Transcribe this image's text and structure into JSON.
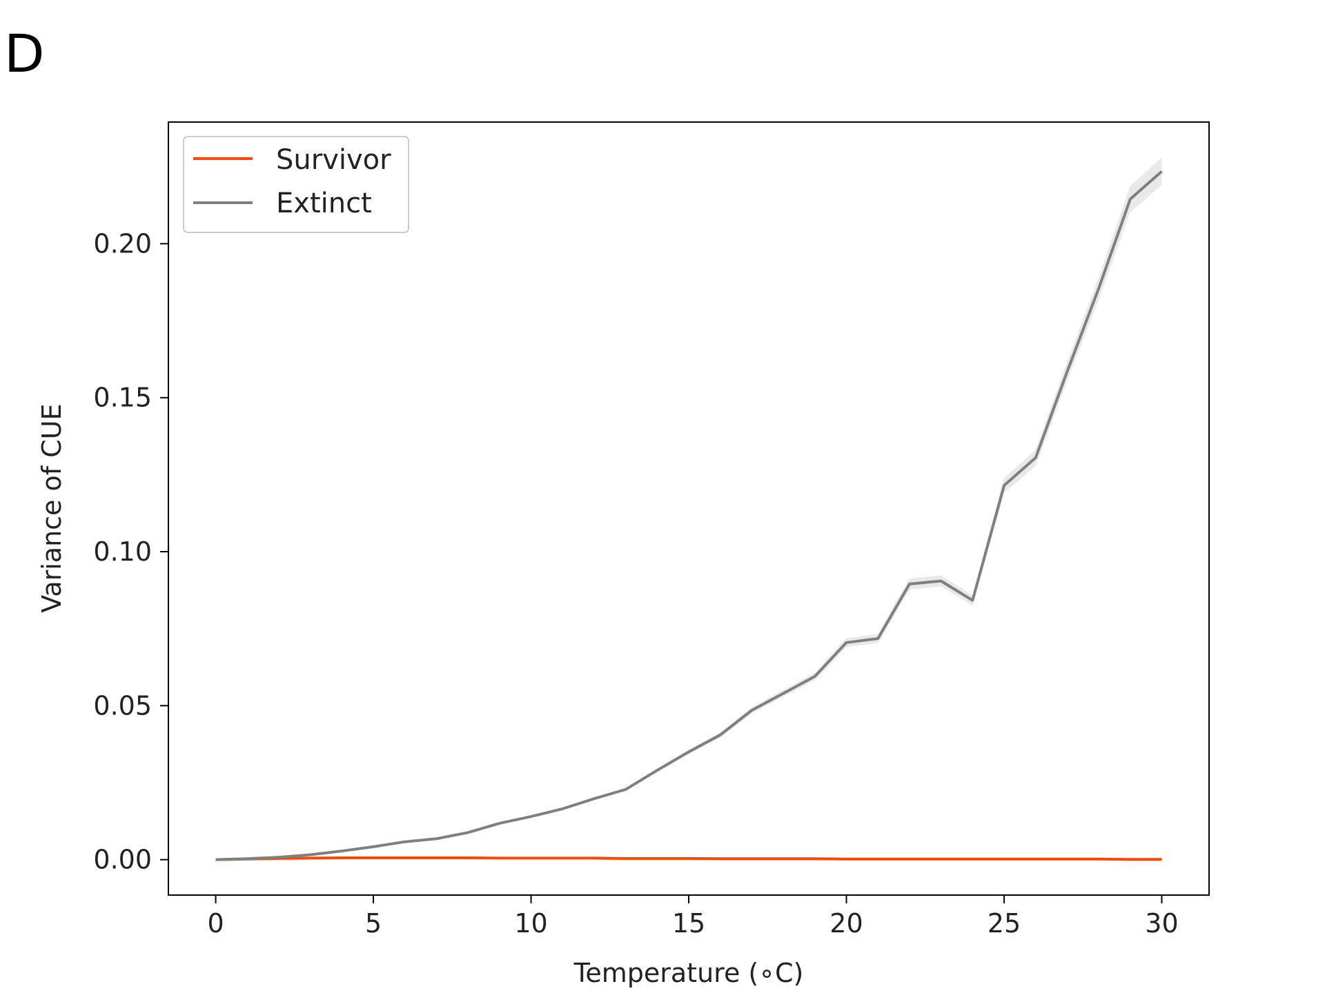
{
  "panel_label": "D",
  "chart_data": {
    "type": "line",
    "xlabel": "Temperature (∘C)",
    "ylabel": "Variance of CUE",
    "xlim": [
      -1.5,
      31.5
    ],
    "ylim": [
      -0.0115,
      0.2395
    ],
    "xticks": [
      0,
      5,
      10,
      15,
      20,
      25,
      30
    ],
    "yticks": [
      0.0,
      0.05,
      0.1,
      0.15,
      0.2
    ],
    "ytick_labels": [
      "0.00",
      "0.05",
      "0.10",
      "0.15",
      "0.20"
    ],
    "legend": {
      "placement": "top-left"
    },
    "grid": false,
    "series": [
      {
        "name": "Survivor",
        "color": "#ff4500",
        "x": [
          0,
          1,
          2,
          3,
          4,
          5,
          6,
          7,
          8,
          9,
          10,
          11,
          12,
          13,
          14,
          15,
          16,
          17,
          18,
          19,
          20,
          21,
          22,
          23,
          24,
          25,
          26,
          27,
          28,
          29,
          30
        ],
        "y": [
          0.0,
          0.0002,
          0.0004,
          0.0005,
          0.0006,
          0.0006,
          0.0006,
          0.0006,
          0.0006,
          0.0005,
          0.0005,
          0.0005,
          0.0005,
          0.0004,
          0.0004,
          0.0004,
          0.0003,
          0.0003,
          0.0003,
          0.0003,
          0.0002,
          0.0002,
          0.0002,
          0.0002,
          0.0002,
          0.0002,
          0.0002,
          0.0002,
          0.0002,
          0.0001,
          0.0001
        ]
      },
      {
        "name": "Extinct",
        "color": "#7f7f7f",
        "x": [
          0,
          1,
          2,
          3,
          4,
          5,
          6,
          7,
          8,
          9,
          10,
          11,
          12,
          13,
          14,
          15,
          16,
          17,
          18,
          19,
          20,
          21,
          22,
          23,
          24,
          25,
          26,
          27,
          28,
          29,
          30
        ],
        "y": [
          0.0,
          0.0003,
          0.0008,
          0.0016,
          0.0028,
          0.0042,
          0.0058,
          0.0068,
          0.0088,
          0.0118,
          0.014,
          0.0165,
          0.0198,
          0.0228,
          0.029,
          0.035,
          0.0405,
          0.0485,
          0.054,
          0.0595,
          0.0705,
          0.0718,
          0.0895,
          0.0905,
          0.0842,
          0.1215,
          0.1305,
          0.1585,
          0.1855,
          0.2145,
          0.2235
        ]
      }
    ]
  }
}
